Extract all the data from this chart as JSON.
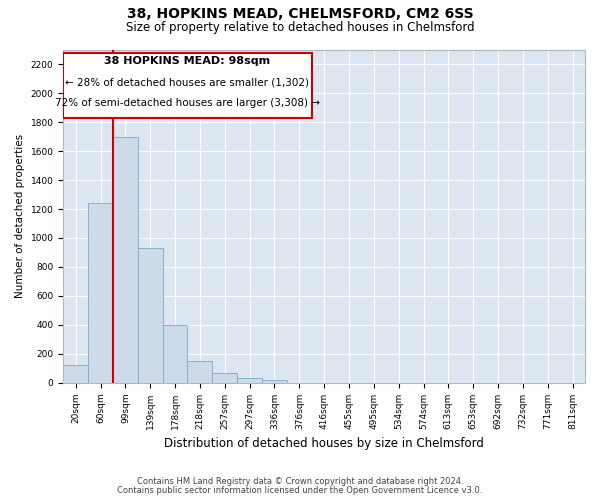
{
  "title1": "38, HOPKINS MEAD, CHELMSFORD, CM2 6SS",
  "title2": "Size of property relative to detached houses in Chelmsford",
  "xlabel": "Distribution of detached houses by size in Chelmsford",
  "ylabel": "Number of detached properties",
  "footer1": "Contains HM Land Registry data © Crown copyright and database right 2024.",
  "footer2": "Contains public sector information licensed under the Open Government Licence v3.0.",
  "annotation_title": "38 HOPKINS MEAD: 98sqm",
  "annotation_line1": "← 28% of detached houses are smaller (1,302)",
  "annotation_line2": "72% of semi-detached houses are larger (3,308) →",
  "bar_color": "#ccdaea",
  "bar_edge_color": "#7aaac8",
  "line_color": "#cc0000",
  "bg_color": "#dce6f0",
  "grid_color": "#ffffff",
  "categories": [
    "20sqm",
    "60sqm",
    "99sqm",
    "139sqm",
    "178sqm",
    "218sqm",
    "257sqm",
    "297sqm",
    "336sqm",
    "376sqm",
    "416sqm",
    "455sqm",
    "495sqm",
    "534sqm",
    "574sqm",
    "613sqm",
    "653sqm",
    "692sqm",
    "732sqm",
    "771sqm",
    "811sqm"
  ],
  "values": [
    120,
    1240,
    1700,
    930,
    400,
    150,
    65,
    30,
    20,
    0,
    0,
    0,
    0,
    0,
    0,
    0,
    0,
    0,
    0,
    0,
    0
  ],
  "ylim": [
    0,
    2300
  ],
  "yticks": [
    0,
    200,
    400,
    600,
    800,
    1000,
    1200,
    1400,
    1600,
    1800,
    2000,
    2200
  ],
  "red_line_x": 1.5,
  "title1_fontsize": 10,
  "title2_fontsize": 8.5,
  "xlabel_fontsize": 8.5,
  "ylabel_fontsize": 7.5,
  "tick_fontsize": 6.5,
  "footer_fontsize": 6.0
}
